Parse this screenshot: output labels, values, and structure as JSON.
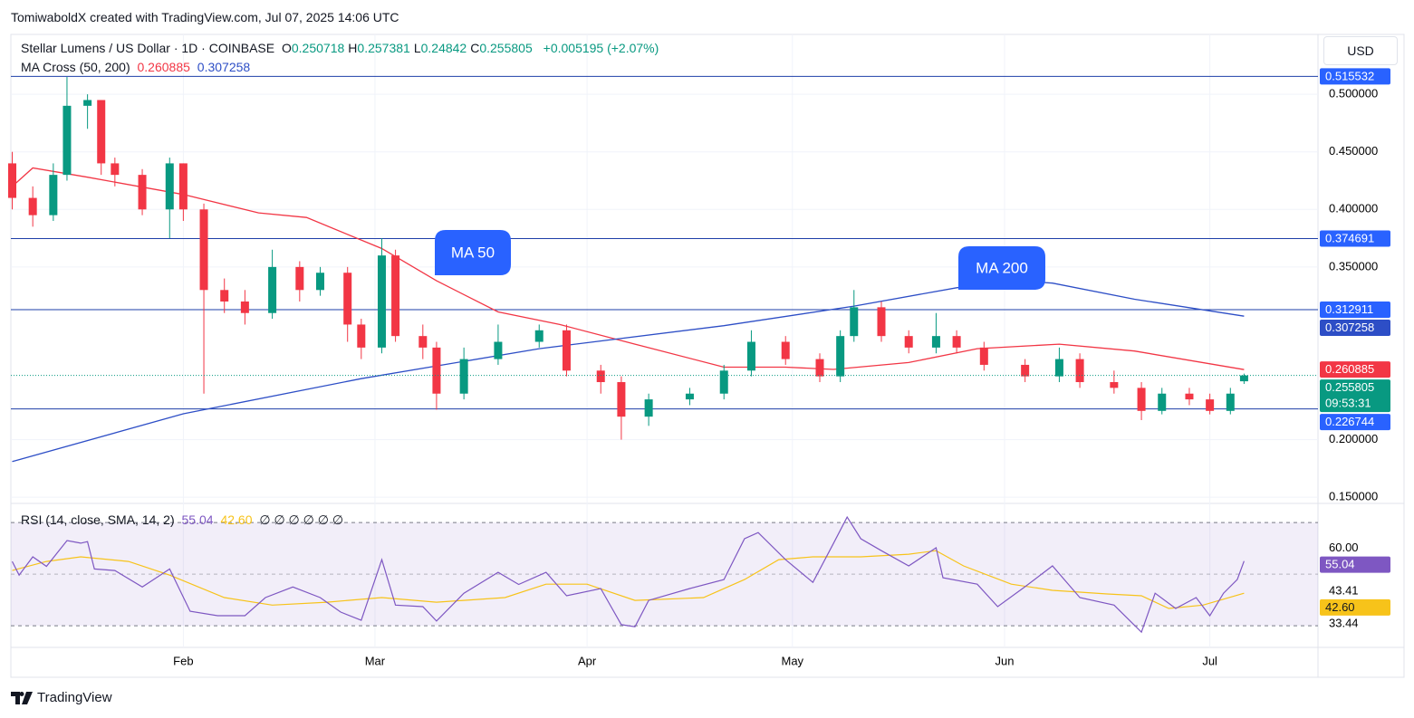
{
  "header": {
    "text": "TomiwaboldX created with TradingView.com, Jul 07, 2025 14:06 UTC"
  },
  "currency": "USD",
  "footer": {
    "brand": "TradingView"
  },
  "chart_data": [
    {
      "type": "candlestick",
      "title": "Stellar Lumens / US Dollar · 1D · COINBASE",
      "ohlc_labels": [
        "O",
        "H",
        "L",
        "C"
      ],
      "change": "+0.005195 (+2.07%)",
      "up_color": "#089981",
      "down_color": "#f23645",
      "x": [
        6,
        9,
        12,
        14,
        17,
        19,
        21,
        25,
        29,
        31,
        34,
        37,
        40,
        44,
        48,
        51,
        55,
        57,
        60,
        62,
        66,
        68,
        72,
        77,
        83,
        87,
        92,
        95,
        99,
        105,
        110,
        114,
        119,
        124,
        127,
        129,
        133,
        137,
        141,
        144,
        148,
        154,
        159,
        162,
        167,
        171,
        174,
        178,
        181,
        184,
        186
      ],
      "open": [
        0.44,
        0.41,
        0.395,
        0.43,
        0.49,
        0.495,
        0.44,
        0.43,
        0.4,
        0.44,
        0.4,
        0.33,
        0.32,
        0.31,
        0.35,
        0.33,
        0.345,
        0.3,
        0.28,
        0.36,
        0.29,
        0.28,
        0.24,
        0.27,
        0.285,
        0.295,
        0.26,
        0.25,
        0.22,
        0.235,
        0.24,
        0.26,
        0.285,
        0.27,
        0.255,
        0.29,
        0.315,
        0.29,
        0.28,
        0.29,
        0.28,
        0.265,
        0.255,
        0.27,
        0.25,
        0.245,
        0.225,
        0.24,
        0.235,
        0.225,
        0.250718
      ],
      "high": [
        0.45,
        0.42,
        0.44,
        0.515,
        0.5,
        0.495,
        0.445,
        0.435,
        0.445,
        0.44,
        0.405,
        0.34,
        0.33,
        0.365,
        0.355,
        0.35,
        0.35,
        0.305,
        0.375,
        0.365,
        0.3,
        0.285,
        0.28,
        0.3,
        0.3,
        0.3,
        0.265,
        0.255,
        0.24,
        0.245,
        0.265,
        0.295,
        0.29,
        0.275,
        0.295,
        0.33,
        0.32,
        0.295,
        0.31,
        0.295,
        0.285,
        0.27,
        0.28,
        0.275,
        0.26,
        0.25,
        0.245,
        0.245,
        0.24,
        0.245,
        0.257381
      ],
      "low": [
        0.4,
        0.385,
        0.39,
        0.425,
        0.47,
        0.43,
        0.42,
        0.395,
        0.375,
        0.39,
        0.24,
        0.31,
        0.3,
        0.305,
        0.32,
        0.325,
        0.285,
        0.27,
        0.275,
        0.285,
        0.27,
        0.226,
        0.235,
        0.265,
        0.28,
        0.255,
        0.24,
        0.2,
        0.212,
        0.23,
        0.235,
        0.255,
        0.265,
        0.25,
        0.25,
        0.285,
        0.285,
        0.275,
        0.275,
        0.275,
        0.26,
        0.25,
        0.25,
        0.245,
        0.24,
        0.217,
        0.222,
        0.23,
        0.222,
        0.222,
        0.24842
      ],
      "close": [
        0.41,
        0.395,
        0.43,
        0.49,
        0.495,
        0.44,
        0.43,
        0.4,
        0.44,
        0.4,
        0.33,
        0.32,
        0.31,
        0.35,
        0.33,
        0.345,
        0.3,
        0.28,
        0.36,
        0.29,
        0.28,
        0.24,
        0.27,
        0.285,
        0.295,
        0.26,
        0.25,
        0.22,
        0.235,
        0.24,
        0.26,
        0.285,
        0.27,
        0.255,
        0.29,
        0.315,
        0.29,
        0.28,
        0.29,
        0.28,
        0.265,
        0.255,
        0.27,
        0.25,
        0.245,
        0.225,
        0.24,
        0.235,
        0.225,
        0.24,
        0.255805
      ],
      "indicator": "MA Cross (50, 200)",
      "series": [
        {
          "color": "#f23645",
          "x": [
            6,
            9,
            17,
            31,
            42,
            49,
            60,
            68,
            77,
            86,
            97,
            110,
            119,
            126,
            137,
            147,
            159,
            170,
            186
          ],
          "values": [
            0.42,
            0.436,
            0.428,
            0.413,
            0.397,
            0.393,
            0.366,
            0.338,
            0.311,
            0.3,
            0.283,
            0.263,
            0.263,
            0.261,
            0.267,
            0.279,
            0.283,
            0.277,
            0.260885
          ]
        },
        {
          "color": "#2d4ec6",
          "x": [
            6,
            31,
            57,
            83,
            110,
            129,
            144,
            153,
            158,
            170,
            186
          ],
          "values": [
            0.181,
            0.2225,
            0.253,
            0.279,
            0.299,
            0.316,
            0.332,
            0.338,
            0.336,
            0.322,
            0.307258
          ]
        }
      ],
      "levels": [
        0.515532,
        0.374691,
        0.312911,
        0.226744
      ],
      "level_color": "#2962ff",
      "countdown": "09:53:31",
      "annotations": [
        {
          "text": "MA 50"
        },
        {
          "text": "MA 200"
        }
      ],
      "xlim": [
        5.8,
        196.8
      ],
      "xticks": [
        {
          "value": 31,
          "label": "Feb"
        },
        {
          "value": 59,
          "label": "Mar"
        },
        {
          "value": 90,
          "label": "Apr"
        },
        {
          "value": 120,
          "label": "May"
        },
        {
          "value": 151,
          "label": "Jun"
        },
        {
          "value": 181,
          "label": "Jul"
        }
      ],
      "ylim": [
        0.147,
        0.552
      ],
      "yticks": [
        {
          "value": 0.5,
          "label": "0.500000"
        },
        {
          "value": 0.45,
          "label": "0.450000"
        },
        {
          "value": 0.4,
          "label": "0.400000"
        },
        {
          "value": 0.35,
          "label": "0.350000"
        },
        {
          "value": 0.2,
          "label": "0.200000"
        },
        {
          "value": 0.15,
          "label": "0.150000"
        }
      ],
      "grid": true
    },
    {
      "type": "line",
      "title": "RSI (14, close, SMA, 14, 2)",
      "extra": "∅ ∅ ∅ ∅ ∅ ∅",
      "series": [
        {
          "color": "#7e57c2",
          "x": [
            6,
            7,
            9,
            11,
            14,
            16,
            17,
            18,
            21,
            25,
            29,
            32,
            36,
            40,
            43,
            47,
            51,
            54,
            57,
            60,
            62,
            66,
            68,
            72,
            77,
            80,
            84,
            87,
            92,
            95,
            97,
            99,
            105,
            110,
            113,
            115,
            119,
            123,
            126,
            128,
            130,
            133,
            137,
            141,
            142,
            147,
            150,
            154,
            158,
            162,
            167,
            171,
            173,
            176,
            179,
            181,
            183,
            185,
            186
          ],
          "values": [
            54.9,
            49.6,
            56.7,
            53,
            63,
            62,
            62.6,
            52,
            51.4,
            45,
            52,
            35.6,
            33.9,
            33.9,
            40.9,
            45,
            40.9,
            35.3,
            32.1,
            55.6,
            38,
            37.4,
            31.8,
            42.6,
            50.7,
            46,
            50.7,
            41.6,
            44.4,
            30.4,
            29.6,
            39.8,
            44.4,
            47.9,
            63.7,
            66.1,
            55.6,
            46.8,
            61.9,
            72.1,
            63.7,
            59.1,
            53.2,
            60.2,
            48.6,
            46.1,
            37.4,
            45.1,
            53.2,
            40.9,
            38,
            27.5,
            42.6,
            36.7,
            40.9,
            33.9,
            42.6,
            47.9,
            55.04
          ]
        },
        {
          "color": "#f7c31a",
          "x": [
            6,
            11,
            16,
            23,
            29,
            37,
            44,
            52,
            60,
            68,
            78,
            84,
            90,
            97,
            107,
            113,
            118,
            123,
            130,
            137,
            141,
            145,
            152,
            158,
            166,
            171,
            175,
            180,
            186
          ],
          "values": [
            51.4,
            54.9,
            56.7,
            54.9,
            49.6,
            40.9,
            38,
            39.1,
            40.9,
            39.1,
            40.9,
            46.1,
            46.1,
            39.8,
            40.9,
            47.9,
            55.6,
            56.7,
            56.7,
            57.7,
            59.1,
            53.2,
            46.1,
            43.7,
            42.3,
            41.6,
            36.7,
            38,
            42.6
          ],
          "last_label": "42.60"
        }
      ],
      "bands": [
        70,
        50,
        30
      ],
      "band_color": "#7e57c2",
      "xlim": [
        5.8,
        196.8
      ],
      "ylim": [
        21.6,
        76
      ],
      "yticks": [
        {
          "value": 60,
          "label": "60.00"
        },
        {
          "value": 43.41,
          "label": "43.41"
        },
        {
          "value": 33.44,
          "label": "33.44"
        }
      ]
    }
  ]
}
